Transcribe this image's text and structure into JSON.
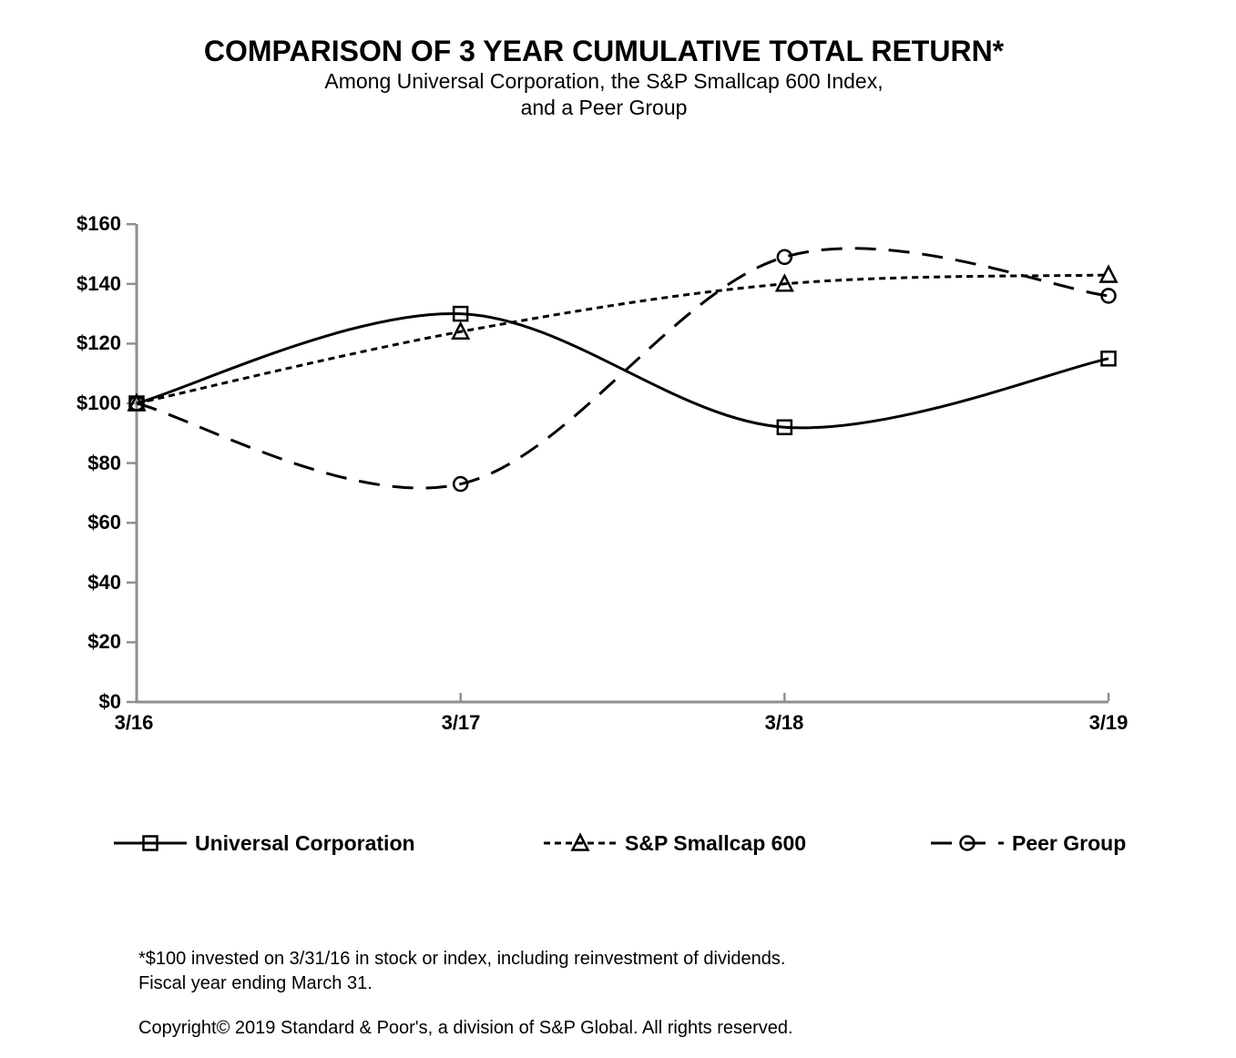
{
  "header": {
    "title": "COMPARISON OF 3 YEAR CUMULATIVE TOTAL RETURN*",
    "subtitle_line1": "Among Universal Corporation, the S&P Smallcap 600 Index,",
    "subtitle_line2": "and a Peer Group"
  },
  "chart_data": {
    "type": "line",
    "x": [
      "3/16",
      "3/17",
      "3/18",
      "3/19"
    ],
    "ylim": [
      0,
      160
    ],
    "ytick_step": 20,
    "ytick_labels": [
      "$160",
      "$140",
      "$120",
      "$100",
      "$80",
      "$60",
      "$40",
      "$20",
      "$0"
    ],
    "grid": false,
    "legend_position": "bottom",
    "line_color": "#000000",
    "axis_color": "#8f8f8f",
    "background_color": "#ffffff",
    "smoothing": "catmull-rom",
    "series": [
      {
        "name": "Universal Corporation",
        "line_style": "solid",
        "marker": "square",
        "values": [
          100,
          130,
          92,
          115
        ]
      },
      {
        "name": "S&P Smallcap 600",
        "line_style": "dotted",
        "marker": "triangle",
        "values": [
          100,
          124,
          140,
          143
        ]
      },
      {
        "name": "Peer Group",
        "line_style": "dashed",
        "marker": "circle",
        "values": [
          100,
          73,
          149,
          136
        ]
      }
    ]
  },
  "footnotes": {
    "line1": "*$100 invested on 3/31/16 in stock or index, including reinvestment of dividends.",
    "line2": "Fiscal year ending March 31.",
    "copyright": "Copyright© 2019 Standard & Poor's, a division of S&P Global. All rights reserved."
  }
}
